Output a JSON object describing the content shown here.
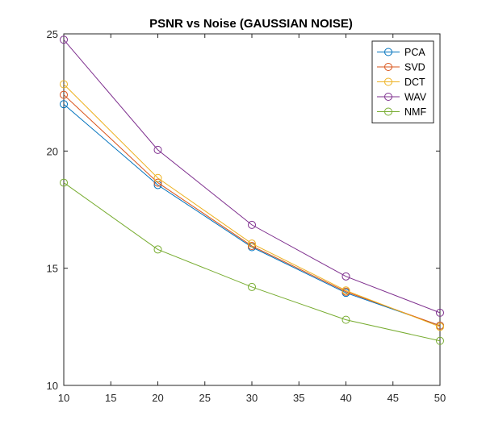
{
  "chart_data": {
    "type": "line",
    "title": "PSNR vs Noise (GAUSSIAN NOISE)",
    "xlabel": "",
    "ylabel": "",
    "x": [
      10,
      20,
      30,
      40,
      50
    ],
    "xlim": [
      10,
      50
    ],
    "ylim": [
      10,
      25
    ],
    "xticks": [
      10,
      15,
      20,
      25,
      30,
      35,
      40,
      45,
      50
    ],
    "yticks": [
      10,
      15,
      20,
      25
    ],
    "grid": false,
    "legend_position": "top-right",
    "marker": "circle",
    "series": [
      {
        "name": "PCA",
        "color": "#0072BD",
        "values": [
          22.0,
          18.55,
          15.9,
          13.95,
          12.55
        ]
      },
      {
        "name": "SVD",
        "color": "#D95319",
        "values": [
          22.4,
          18.65,
          15.95,
          14.0,
          12.55
        ]
      },
      {
        "name": "DCT",
        "color": "#EDB120",
        "values": [
          22.85,
          18.85,
          16.05,
          14.05,
          12.5
        ]
      },
      {
        "name": "WAV",
        "color": "#7E2F8E",
        "values": [
          24.75,
          20.05,
          16.85,
          14.65,
          13.1
        ]
      },
      {
        "name": "NMF",
        "color": "#77AC30",
        "values": [
          18.65,
          15.8,
          14.2,
          12.8,
          11.9
        ]
      }
    ]
  }
}
